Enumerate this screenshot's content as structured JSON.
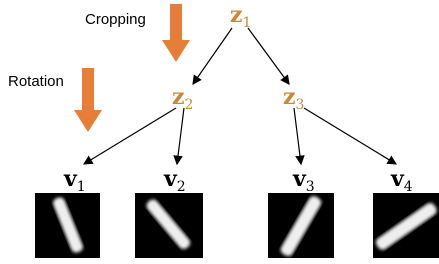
{
  "annotations": {
    "cropping": "Cropping",
    "rotation": "Rotation"
  },
  "nodes": [
    {
      "symbol": "z",
      "subscript": "1"
    },
    {
      "symbol": "z",
      "subscript": "2"
    },
    {
      "symbol": "z",
      "subscript": "3"
    },
    {
      "symbol": "v",
      "subscript": "1"
    },
    {
      "symbol": "v",
      "subscript": "2"
    },
    {
      "symbol": "v",
      "subscript": "3"
    },
    {
      "symbol": "v",
      "subscript": "4"
    }
  ]
}
